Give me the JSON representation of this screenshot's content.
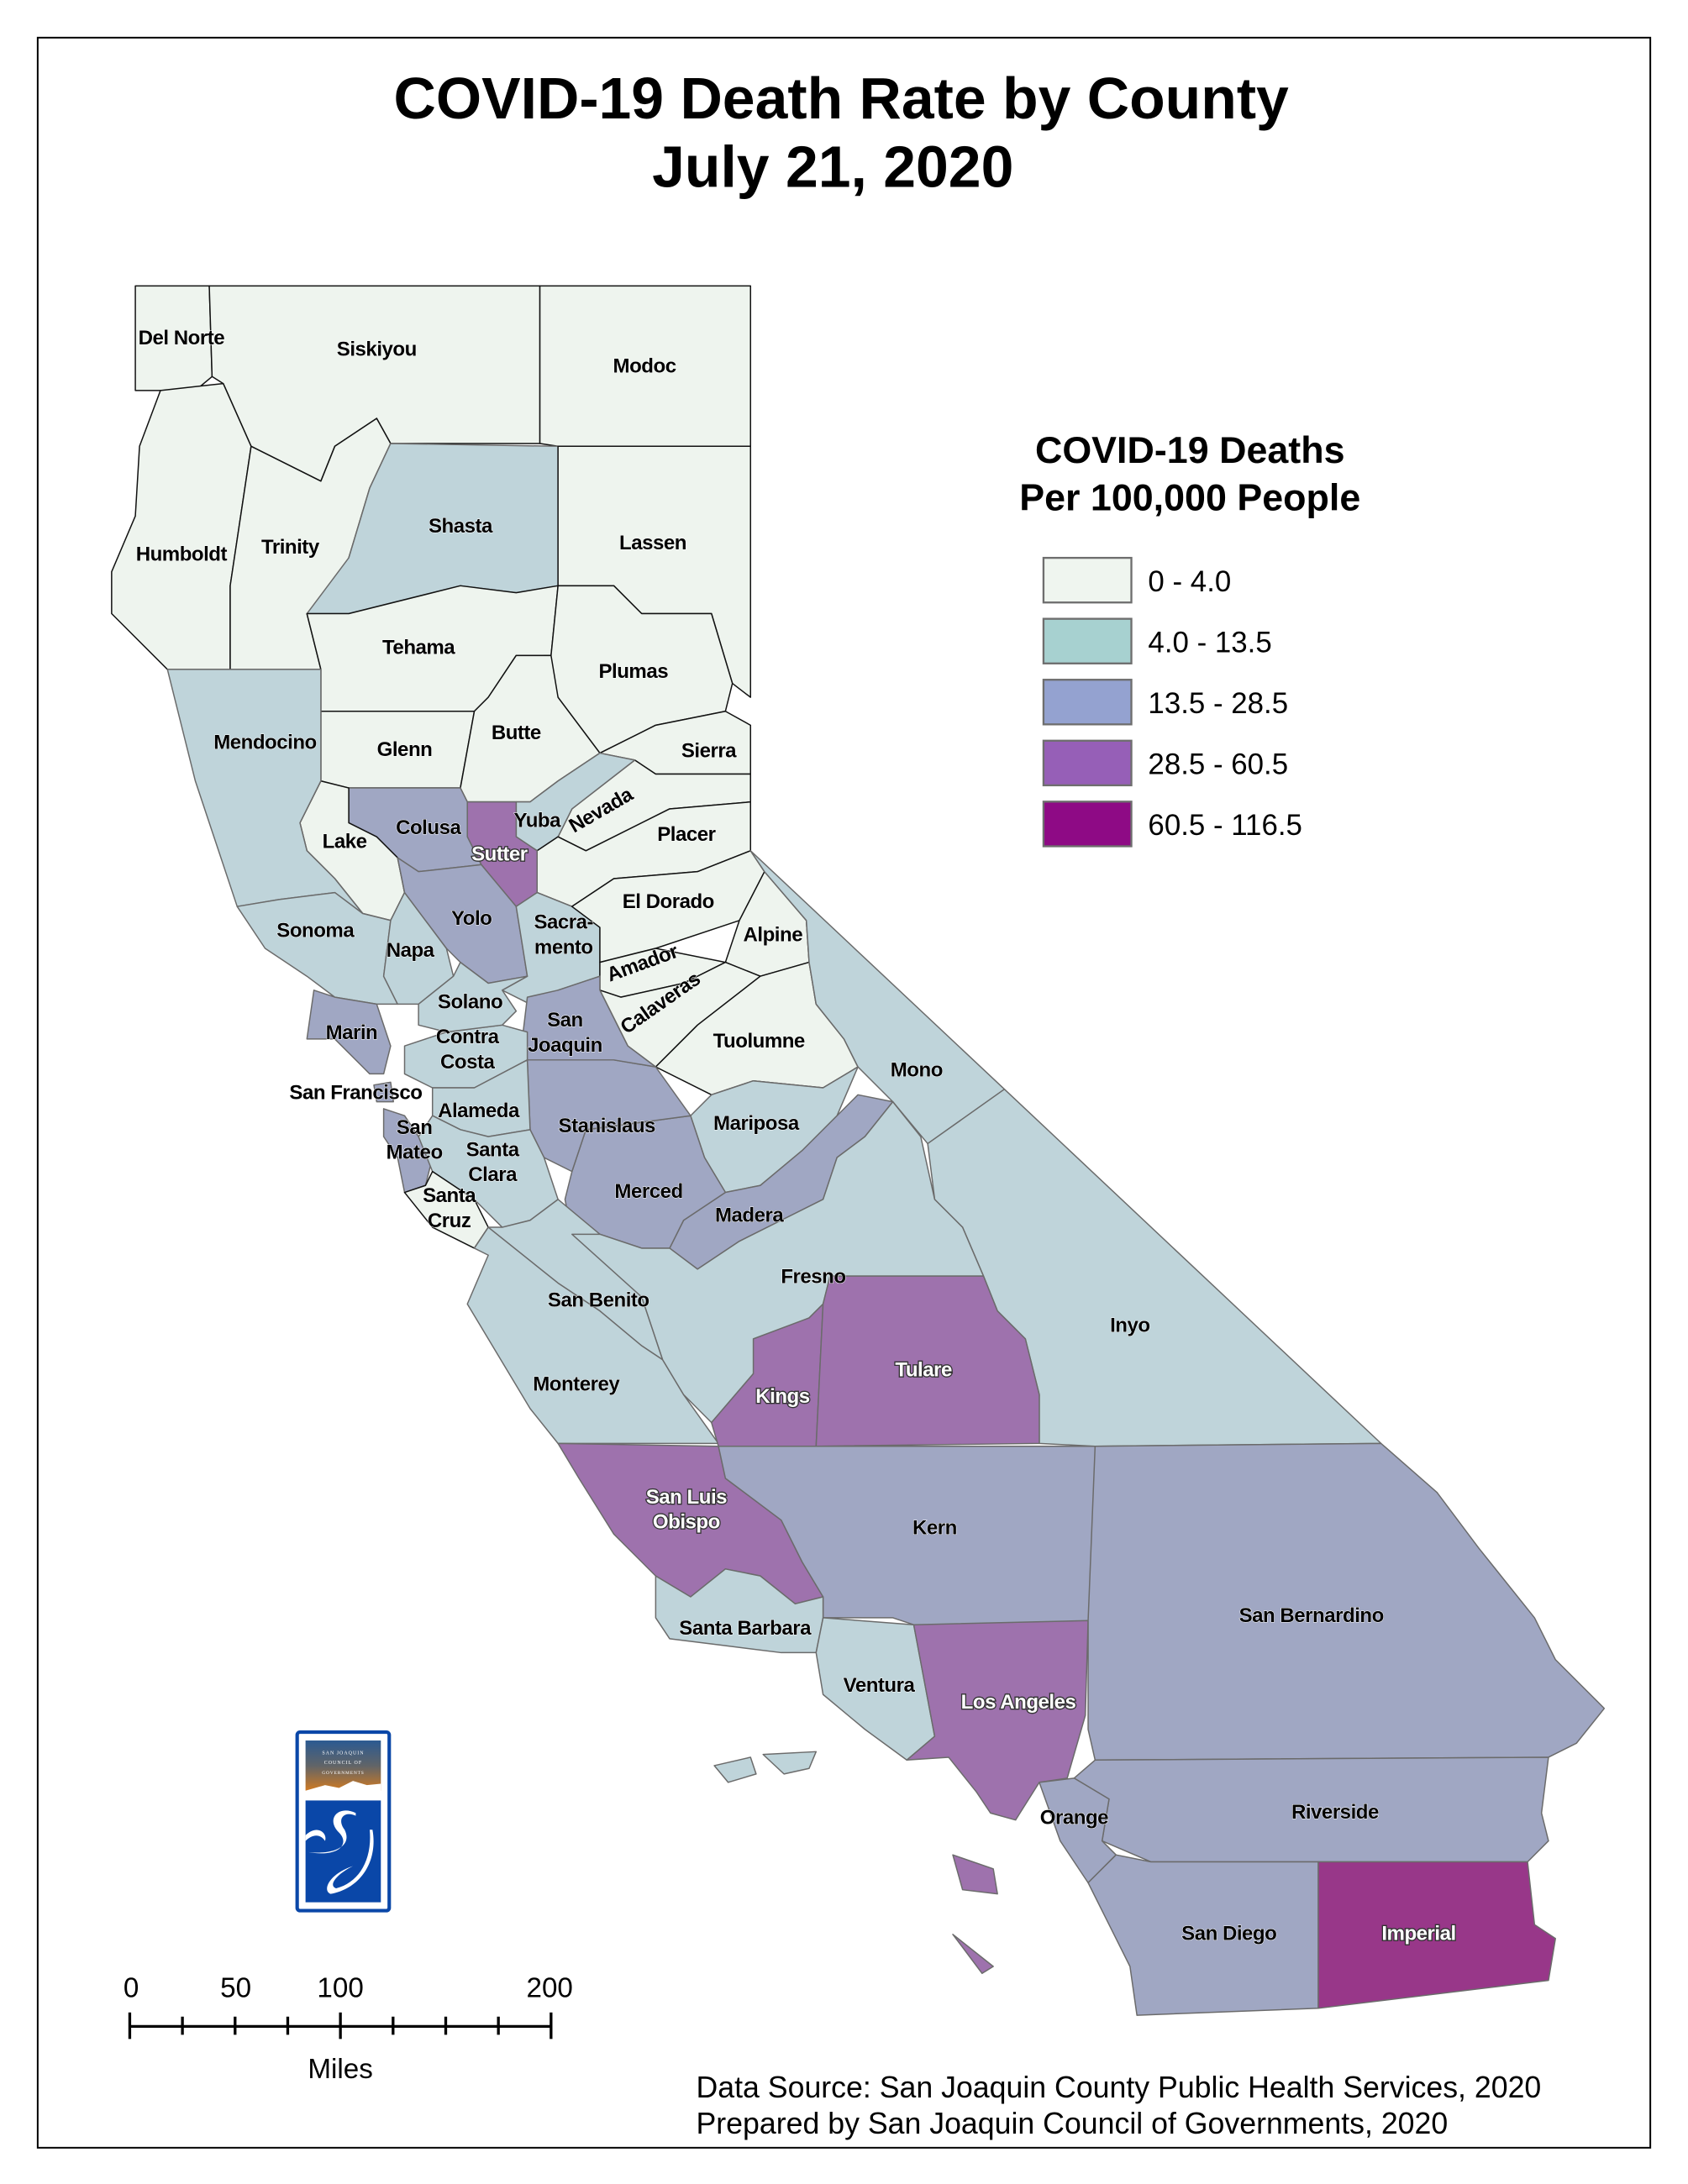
{
  "title": {
    "line1": "COVID-19 Death Rate by County",
    "line2": "July 21, 2020"
  },
  "legend": {
    "title_line1": "COVID-19 Deaths",
    "title_line2": "Per 100,000 People",
    "classes": [
      {
        "label": "0 - 4.0",
        "swatch": "#eff5ef",
        "map_fill": "#eef4ee"
      },
      {
        "label": "4.0 - 13.5",
        "swatch": "#a7d1d0",
        "map_fill": "#bfd4da"
      },
      {
        "label": "13.5 - 28.5",
        "swatch": "#94a2d0",
        "map_fill": "#a0a7c3"
      },
      {
        "label": "28.5 - 60.5",
        "swatch": "#965fb7",
        "map_fill": "#9e72ad"
      },
      {
        "label": "60.5 - 116.5",
        "swatch": "#8e0a85",
        "map_fill": "#983789"
      }
    ]
  },
  "counties": [
    {
      "name": "Del Norte",
      "bin": 0
    },
    {
      "name": "Siskiyou",
      "bin": 0
    },
    {
      "name": "Modoc",
      "bin": 0
    },
    {
      "name": "Humboldt",
      "bin": 0
    },
    {
      "name": "Trinity",
      "bin": 0
    },
    {
      "name": "Shasta",
      "bin": 1
    },
    {
      "name": "Lassen",
      "bin": 0
    },
    {
      "name": "Tehama",
      "bin": 0
    },
    {
      "name": "Plumas",
      "bin": 0
    },
    {
      "name": "Glenn",
      "bin": 0
    },
    {
      "name": "Butte",
      "bin": 0
    },
    {
      "name": "Sierra",
      "bin": 0
    },
    {
      "name": "Nevada",
      "bin": 0
    },
    {
      "name": "Yuba",
      "bin": 1
    },
    {
      "name": "Placer",
      "bin": 0
    },
    {
      "name": "Sutter",
      "bin": 3
    },
    {
      "name": "Colusa",
      "bin": 2
    },
    {
      "name": "Lake",
      "bin": 0
    },
    {
      "name": "Mendocino",
      "bin": 1
    },
    {
      "name": "Sonoma",
      "bin": 1
    },
    {
      "name": "Napa",
      "bin": 1
    },
    {
      "name": "Yolo",
      "bin": 2
    },
    {
      "name": "Sacramento",
      "label": "Sacra-\nmento",
      "bin": 1
    },
    {
      "name": "El Dorado",
      "bin": 0
    },
    {
      "name": "Alpine",
      "bin": 0
    },
    {
      "name": "Amador",
      "bin": 0
    },
    {
      "name": "Calaveras",
      "bin": 0
    },
    {
      "name": "Tuolumne",
      "bin": 0
    },
    {
      "name": "Mono",
      "bin": 1
    },
    {
      "name": "Inyo",
      "bin": 1
    },
    {
      "name": "Mariposa",
      "bin": 1
    },
    {
      "name": "Madera",
      "bin": 2
    },
    {
      "name": "Merced",
      "bin": 2
    },
    {
      "name": "Stanislaus",
      "bin": 2
    },
    {
      "name": "San Joaquin",
      "label": "San\nJoaquin",
      "bin": 2
    },
    {
      "name": "Contra Costa",
      "label": "Contra\nCosta",
      "bin": 1
    },
    {
      "name": "Solano",
      "bin": 1
    },
    {
      "name": "Marin",
      "bin": 2
    },
    {
      "name": "San Francisco",
      "bin": 2
    },
    {
      "name": "Alameda",
      "bin": 1
    },
    {
      "name": "San Mateo",
      "label": "San\nMateo",
      "bin": 2
    },
    {
      "name": "Santa Clara",
      "label": "Santa\nClara",
      "bin": 1
    },
    {
      "name": "Santa Cruz",
      "label": "Santa\nCruz",
      "bin": 0
    },
    {
      "name": "San Benito",
      "bin": 1
    },
    {
      "name": "Monterey",
      "bin": 1
    },
    {
      "name": "Fresno",
      "bin": 1
    },
    {
      "name": "Kings",
      "bin": 3
    },
    {
      "name": "Tulare",
      "bin": 3
    },
    {
      "name": "San Luis Obispo",
      "label": "San Luis\nObispo",
      "bin": 3
    },
    {
      "name": "Kern",
      "bin": 2
    },
    {
      "name": "Santa Barbara",
      "bin": 1
    },
    {
      "name": "Ventura",
      "bin": 1
    },
    {
      "name": "Los Angeles",
      "bin": 3
    },
    {
      "name": "San Bernardino",
      "bin": 2
    },
    {
      "name": "Riverside",
      "bin": 2
    },
    {
      "name": "Orange",
      "bin": 2
    },
    {
      "name": "San Diego",
      "bin": 2
    },
    {
      "name": "Imperial",
      "bin": 4
    }
  ],
  "scale_bar": {
    "ticks": [
      "0",
      "50",
      "100",
      "200"
    ],
    "unit": "Miles"
  },
  "logo": {
    "text": "SAN JOAQUIN COUNCIL OF GOVERNMENTS",
    "letters": "SJ",
    "colors": [
      "#0a47a8",
      "#d07a22",
      "#4a5a78"
    ]
  },
  "footer": {
    "source": "Data Source: San Joaquin County Public Health Services, 2020",
    "prepared": "Prepared by San Joaquin Council of Governments, 2020"
  }
}
